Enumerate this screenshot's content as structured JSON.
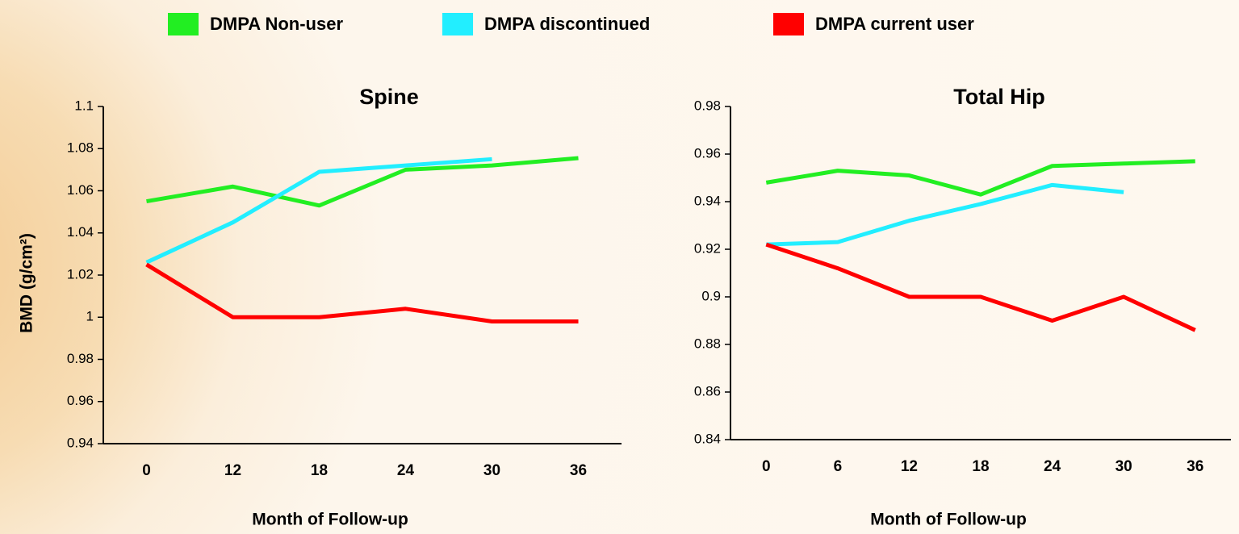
{
  "chart_data": [
    {
      "type": "line",
      "title": "Spine",
      "x_label": "Month of Follow-up",
      "y_label": "BMD (g/cm²)",
      "categories": [
        "0",
        "12",
        "18",
        "24",
        "30",
        "36"
      ],
      "ylim": [
        0.94,
        1.1
      ],
      "yticks": [
        0.94,
        0.96,
        0.98,
        1,
        1.02,
        1.04,
        1.06,
        1.08,
        1.1
      ],
      "series": [
        {
          "name": "DMPA Non-user",
          "color": "#22ee22",
          "values": [
            1.055,
            1.062,
            1.053,
            1.07,
            1.072,
            1.0755
          ]
        },
        {
          "name": "DMPA discontinued",
          "color": "#22eeff",
          "values": [
            1.026,
            1.045,
            1.069,
            1.072,
            1.075,
            null
          ]
        },
        {
          "name": "DMPA current user",
          "color": "#ff0000",
          "values": [
            1.025,
            1.0,
            1.0,
            1.004,
            0.998,
            0.998
          ]
        }
      ]
    },
    {
      "type": "line",
      "title": "Total Hip",
      "x_label": "Month of Follow-up",
      "categories": [
        "0",
        "6",
        "12",
        "18",
        "24",
        "30",
        "36"
      ],
      "ylim": [
        0.84,
        0.98
      ],
      "yticks": [
        0.84,
        0.86,
        0.88,
        0.9,
        0.92,
        0.94,
        0.96,
        0.98
      ],
      "series": [
        {
          "color": "#22ee22",
          "values": [
            0.948,
            0.953,
            0.951,
            0.943,
            0.955,
            0.956,
            0.957
          ]
        },
        {
          "color": "#22eeff",
          "values": [
            0.922,
            0.923,
            0.932,
            0.939,
            0.947,
            0.944,
            null
          ]
        },
        {
          "color": "#ff0000",
          "values": [
            0.922,
            0.912,
            0.9,
            0.9,
            0.89,
            0.9,
            0.886
          ]
        }
      ]
    }
  ]
}
